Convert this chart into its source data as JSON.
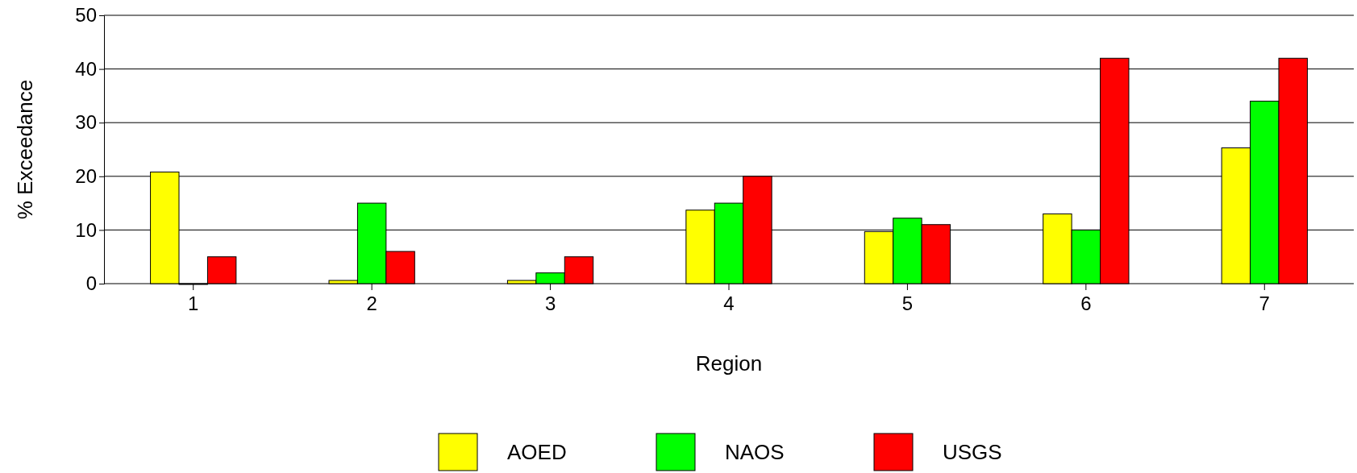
{
  "chart_data": {
    "type": "bar",
    "xlabel": "Region",
    "ylabel": "% Exceedance",
    "categories": [
      "1",
      "2",
      "3",
      "4",
      "5",
      "6",
      "7"
    ],
    "series": [
      {
        "name": "AOED",
        "color": "#ffff00",
        "values": [
          20.8,
          0.6,
          0.6,
          13.7,
          9.7,
          13,
          25.3
        ]
      },
      {
        "name": "NAOS",
        "color": "#00ff00",
        "values": [
          0,
          15,
          2,
          15,
          12.2,
          10,
          34
        ]
      },
      {
        "name": "USGS",
        "color": "#ff0000",
        "values": [
          5,
          6,
          5,
          20,
          11,
          42,
          42
        ]
      }
    ],
    "ylim": [
      0,
      50
    ],
    "yticks": [
      0,
      10,
      20,
      30,
      40,
      50
    ],
    "grid": "y",
    "legend": "bottom"
  }
}
